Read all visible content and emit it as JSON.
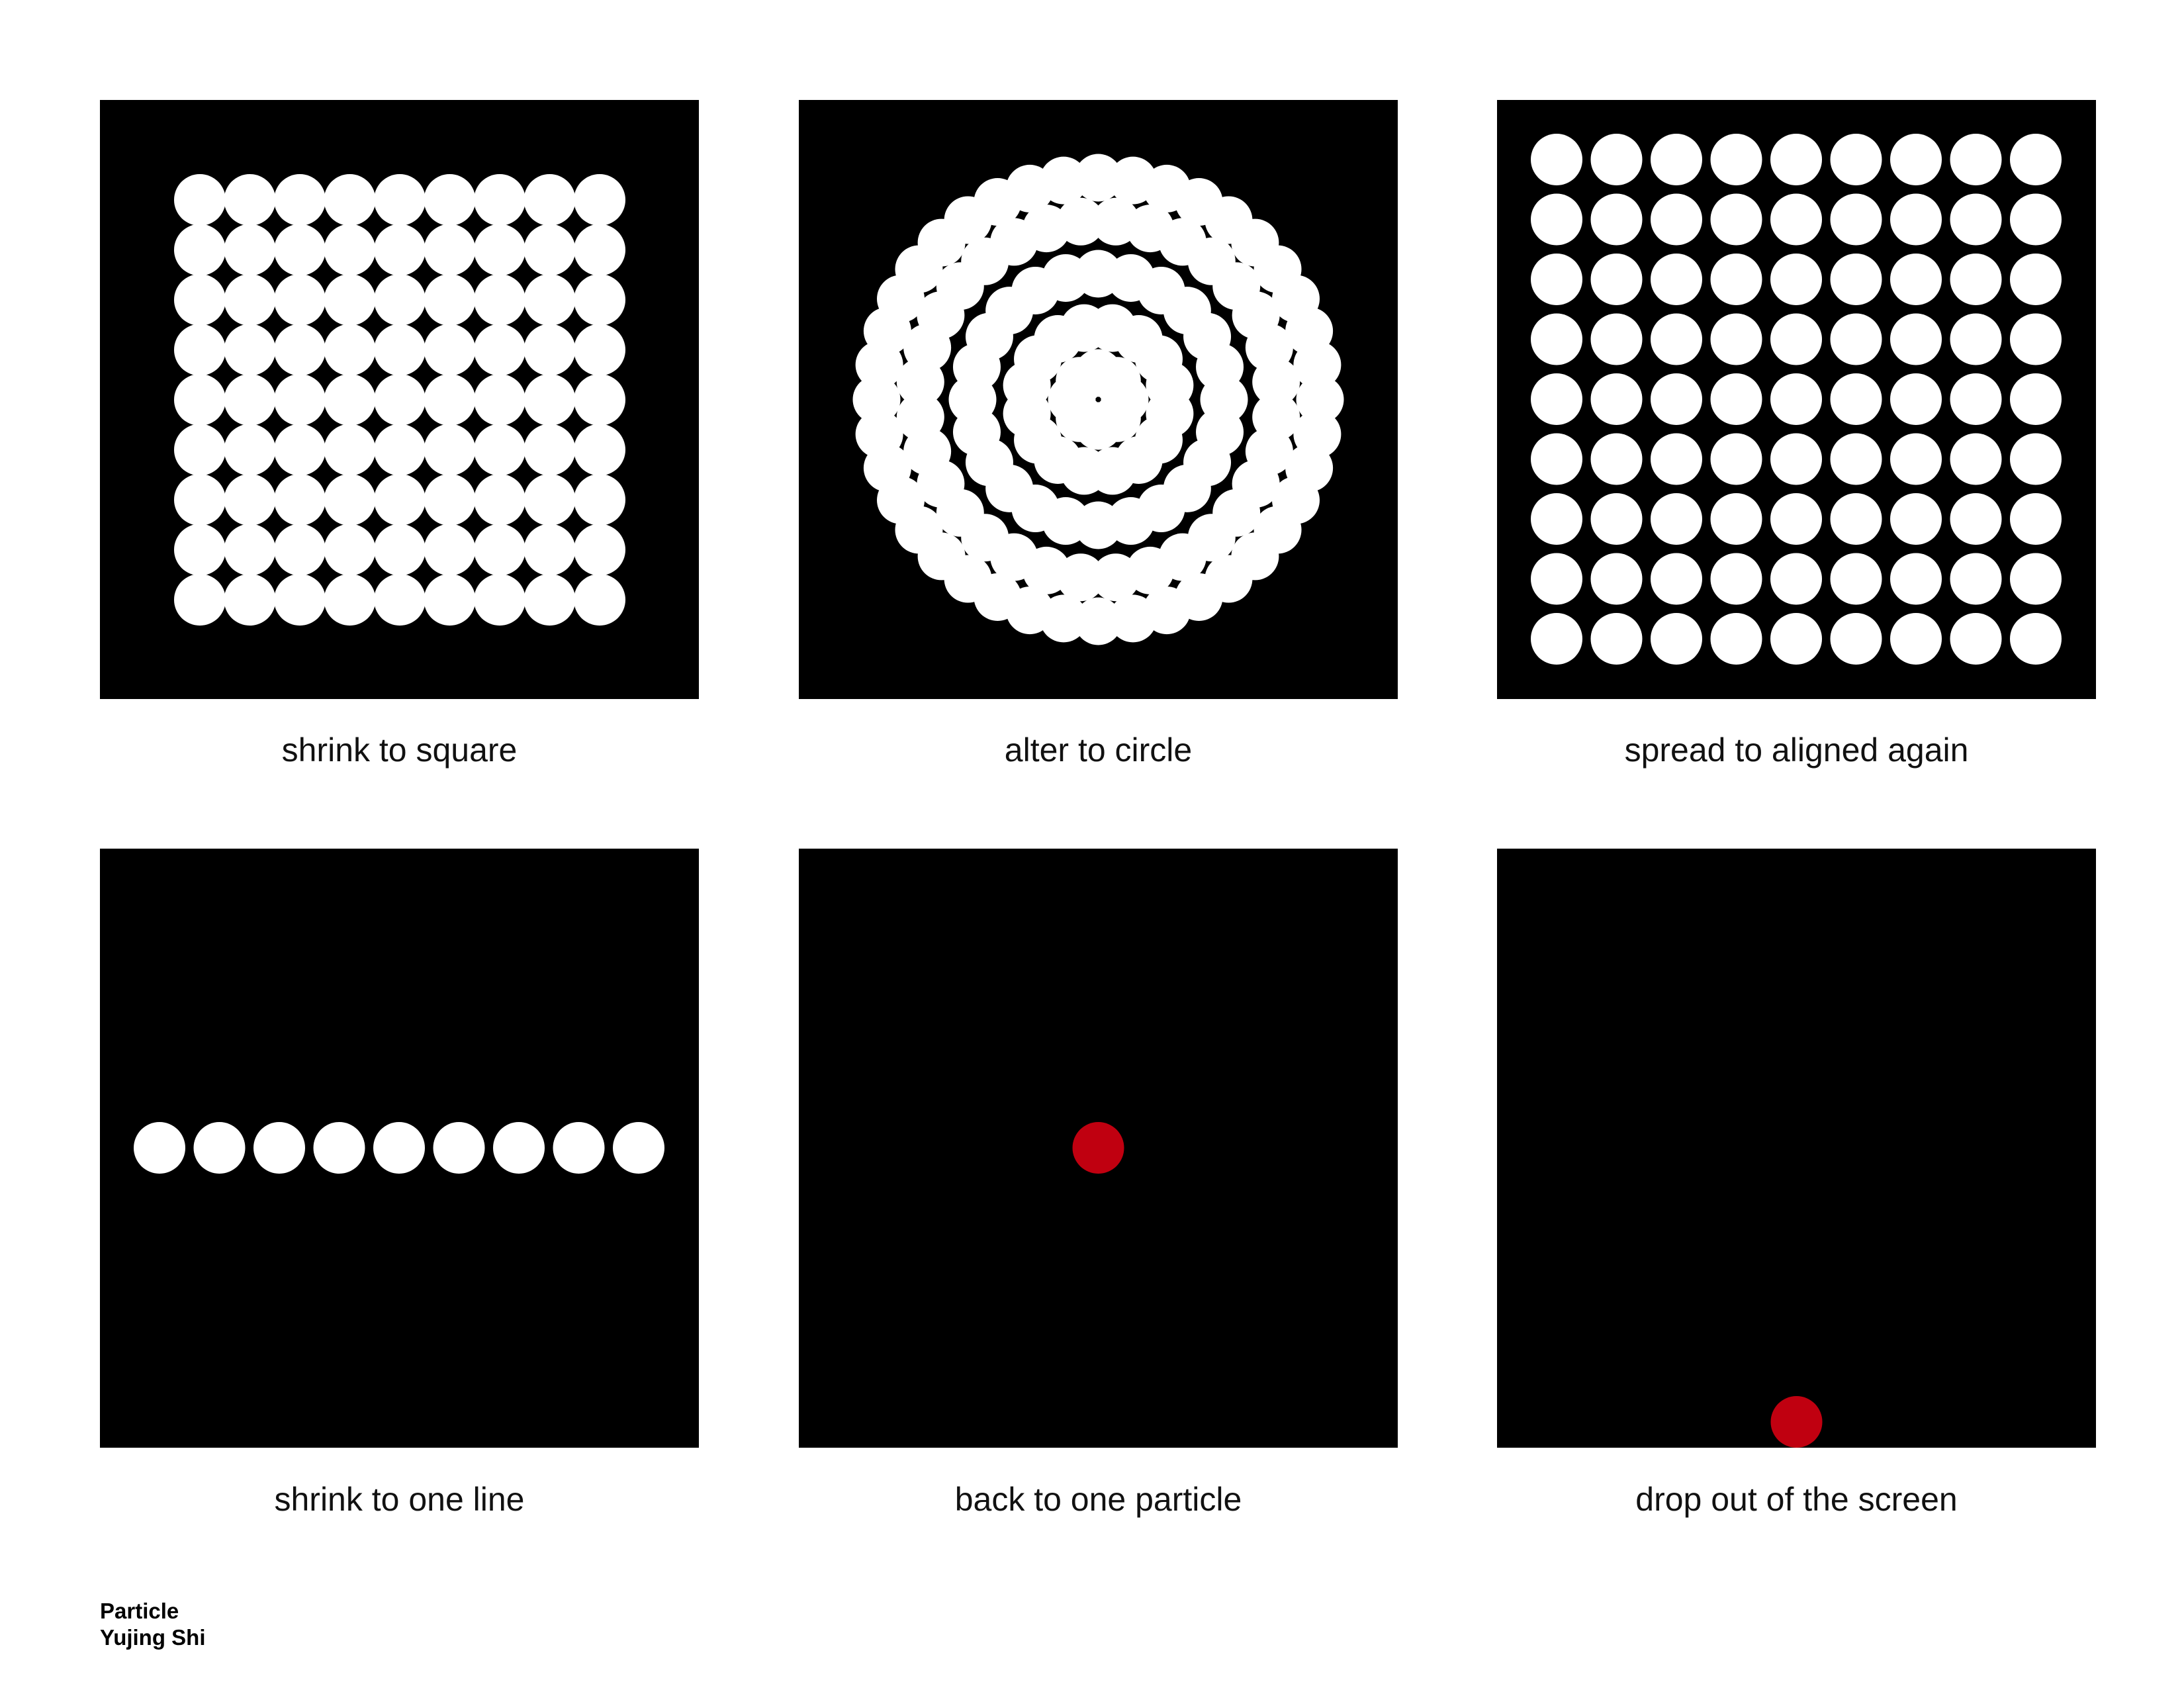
{
  "colors": {
    "background": "#ffffff",
    "panel": "#000000",
    "particle": "#ffffff",
    "highlight_particle": "#c00010"
  },
  "panels": [
    {
      "caption": "shrink to square",
      "pattern": "dense-grid",
      "rows": 9,
      "cols": 9
    },
    {
      "caption": "alter to circle",
      "pattern": "concentric-rings",
      "ring_counts": [
        8,
        16,
        24,
        32,
        40
      ]
    },
    {
      "caption": "spread to aligned again",
      "pattern": "spaced-grid",
      "rows": 9,
      "cols": 9
    },
    {
      "caption": "shrink to one line",
      "pattern": "line",
      "count": 9
    },
    {
      "caption": "back to one particle",
      "pattern": "single-center"
    },
    {
      "caption": "drop out of the screen",
      "pattern": "single-bottom"
    }
  ],
  "credits": {
    "title": "Particle",
    "author": "Yujing Shi"
  }
}
